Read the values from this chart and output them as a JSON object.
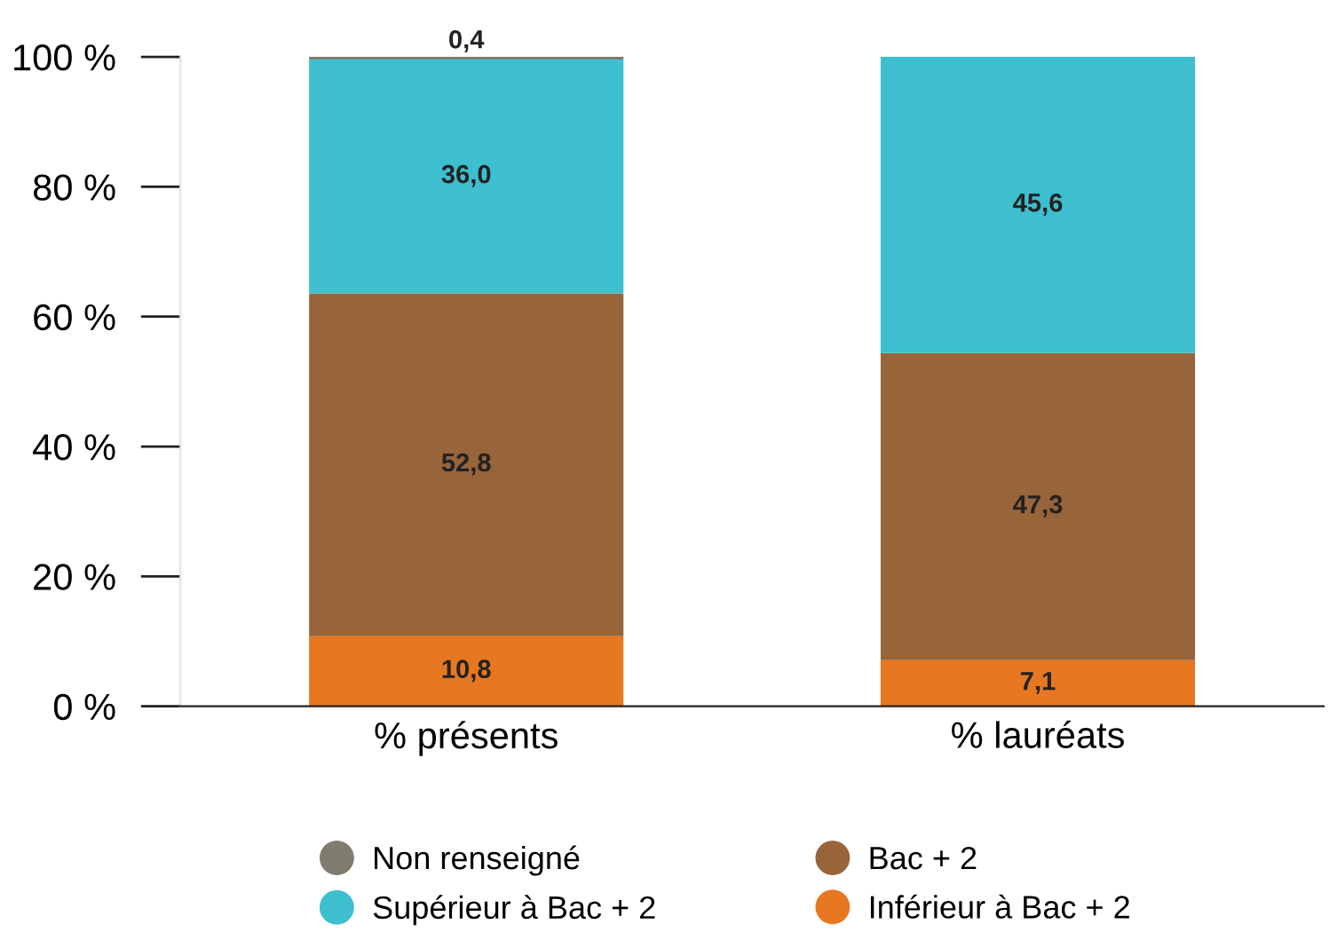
{
  "chart_data": {
    "type": "bar",
    "stacked": true,
    "categories": [
      "% présents",
      "% lauréats"
    ],
    "series": [
      {
        "name": "Inférieur à Bac + 2",
        "color": "#e87722",
        "values": [
          10.8,
          7.1
        ],
        "value_labels": [
          "10,8",
          "7,1"
        ]
      },
      {
        "name": "Bac + 2",
        "color": "#98643a",
        "values": [
          52.8,
          47.3
        ],
        "value_labels": [
          "52,8",
          "47,3"
        ]
      },
      {
        "name": "Supérieur à Bac + 2",
        "color": "#3dbfcf",
        "values": [
          36.0,
          45.6
        ],
        "value_labels": [
          "36,0",
          "45,6"
        ]
      },
      {
        "name": "Non renseigné",
        "color": "#7f7b6e",
        "values": [
          0.4,
          null
        ],
        "value_labels": [
          "0,4",
          null
        ]
      }
    ],
    "ylim": [
      0,
      100
    ],
    "yticks": [
      {
        "value": 0,
        "label": "0 %"
      },
      {
        "value": 20,
        "label": "20 %"
      },
      {
        "value": 40,
        "label": "40 %"
      },
      {
        "value": 60,
        "label": "60 %"
      },
      {
        "value": 80,
        "label": "80 %"
      },
      {
        "value": 100,
        "label": "100 %"
      }
    ],
    "grid": false,
    "legend": "bottom"
  }
}
